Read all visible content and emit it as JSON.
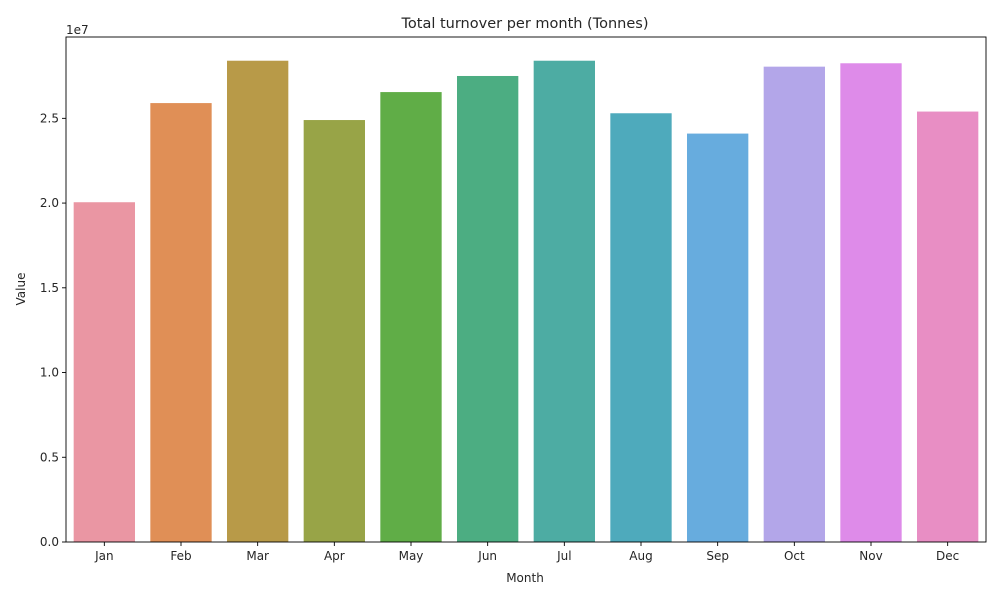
{
  "chart_data": {
    "type": "bar",
    "title": "Total turnover per month (Tonnes)",
    "xlabel": "Month",
    "ylabel": "Value",
    "y_offset_label": "1e7",
    "categories": [
      "Jan",
      "Feb",
      "Mar",
      "Apr",
      "May",
      "Jun",
      "Jul",
      "Aug",
      "Sep",
      "Oct",
      "Nov",
      "Dec"
    ],
    "values": [
      20050000,
      25900000,
      28400000,
      24900000,
      26550000,
      27500000,
      28400000,
      25300000,
      24100000,
      28050000,
      28250000,
      25400000
    ],
    "colors": [
      "#ea96a3",
      "#e08f56",
      "#b89a48",
      "#98a447",
      "#60ad47",
      "#4cad82",
      "#4daca3",
      "#4eaabc",
      "#67acde",
      "#b3a6e9",
      "#de8be9",
      "#e88ec4"
    ],
    "yticks": [
      0,
      5000000,
      10000000,
      15000000,
      20000000,
      25000000
    ],
    "ytick_labels": [
      "0.0",
      "0.5",
      "1.0",
      "1.5",
      "2.0",
      "2.5"
    ],
    "ylim": [
      0,
      29800000
    ],
    "grid": false,
    "legend": "none"
  }
}
